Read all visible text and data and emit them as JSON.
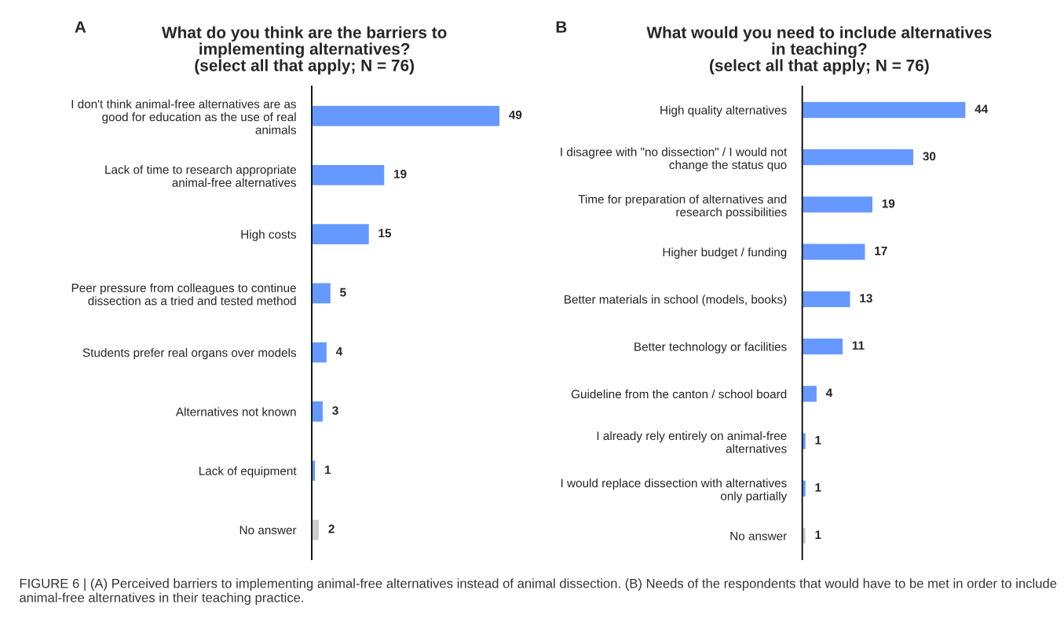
{
  "chart_data": [
    {
      "type": "bar",
      "orientation": "horizontal",
      "title": "What do you think are the barriers to\nimplementing alternatives?\n(select all that apply; N = 76)",
      "categories": [
        "I don't think animal-free alternatives are as\ngood for education as the use of real\nanimals",
        "Lack of time to research appropriate\nanimal-free alternatives",
        "High costs",
        "Peer pressure from colleagues to continue\ndissection as a tried and tested method",
        "Students prefer real organs over models",
        "Alternatives not known",
        "Lack of equipment",
        "No answer"
      ],
      "values": [
        49,
        19,
        15,
        5,
        4,
        3,
        1,
        2
      ],
      "colors": [
        "#6699ff",
        "#6699ff",
        "#6699ff",
        "#6699ff",
        "#6699ff",
        "#6699ff",
        "#6699ff",
        "#cccccc"
      ],
      "data_labels": true,
      "grid": false,
      "legend": false,
      "annotations": [
        "A",
        "FIGURE 6 | (A) Perceived barriers to implementing animal-free alternatives instead of animal dissection. (B) Needs of the respondents that would have to be met in order to include animal-free alternatives in their teaching practice."
      ]
    },
    {
      "type": "bar",
      "orientation": "horizontal",
      "title": "What would you need to include alternatives\nin teaching?\n(select all that apply; N = 76)",
      "categories": [
        "High quality alternatives",
        "I disagree with \"no dissection\" / I would not\nchange the status quo",
        "Time for preparation of alternatives and\nresearch possibilities",
        "Higher budget / funding",
        "Better materials in school (models, books)",
        "Better technology or facilities",
        "Guideline from the canton / school board",
        "I already rely entirely on animal-free\nalternatives",
        "I would replace dissection with alternatives\nonly partially",
        "No answer"
      ],
      "values": [
        44,
        30,
        19,
        17,
        13,
        11,
        4,
        1,
        1,
        1
      ],
      "colors": [
        "#6699ff",
        "#6699ff",
        "#6699ff",
        "#6699ff",
        "#6699ff",
        "#6699ff",
        "#6699ff",
        "#6699ff",
        "#6699ff",
        "#cccccc"
      ],
      "data_labels": true,
      "grid": false,
      "legend": false,
      "annotations": [
        "B"
      ]
    }
  ]
}
